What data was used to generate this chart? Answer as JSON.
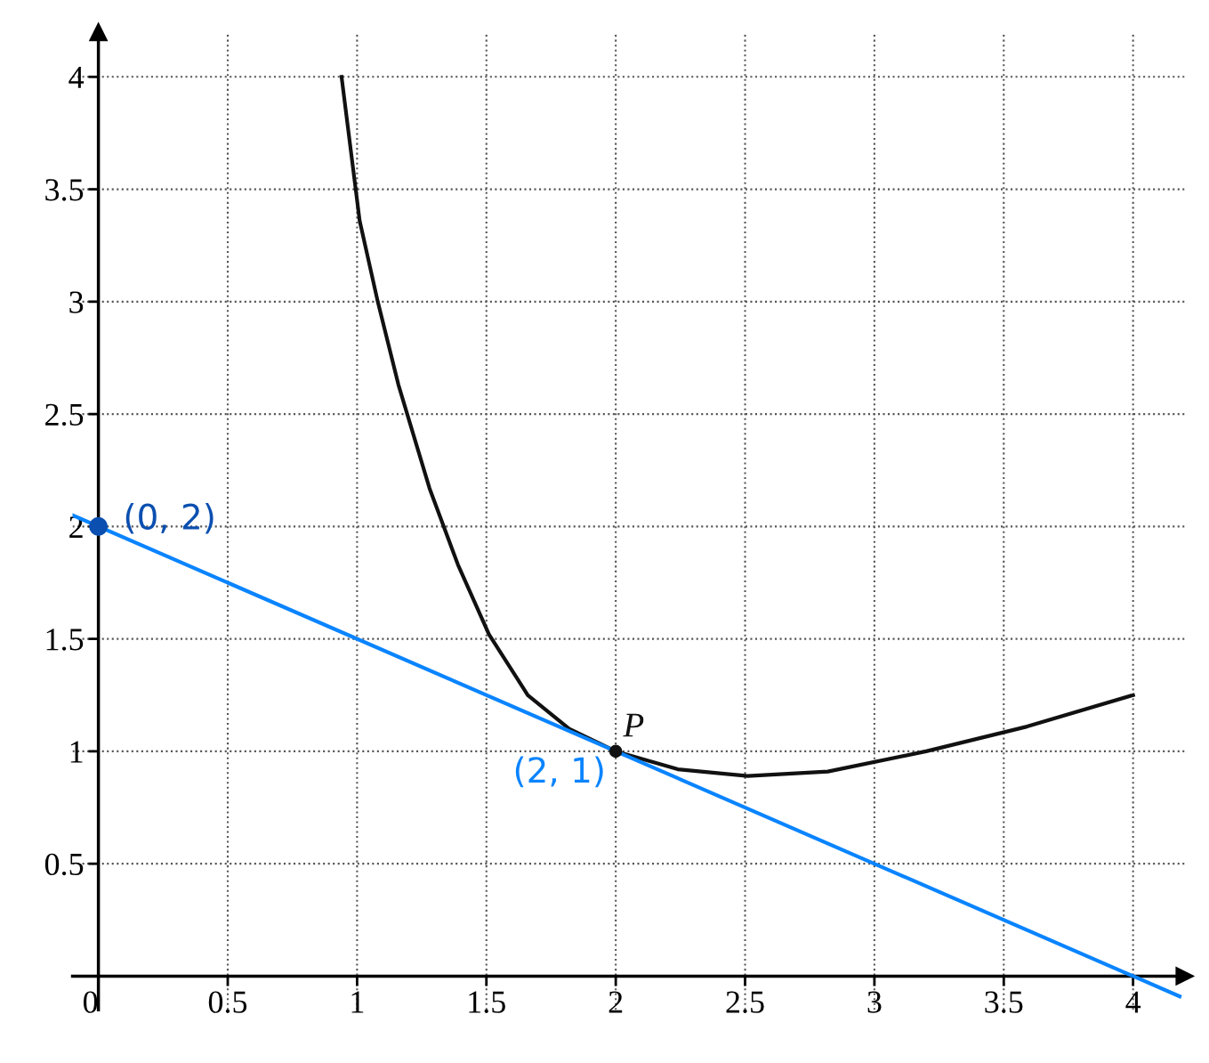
{
  "chart_data": {
    "type": "line",
    "xlim": [
      -0.1,
      4.2
    ],
    "ylim": [
      -0.15,
      4.2
    ],
    "xticks": [
      0,
      0.5,
      1,
      1.5,
      2,
      2.5,
      3,
      3.5,
      4
    ],
    "yticks": [
      0.5,
      1,
      1.5,
      2,
      2.5,
      3,
      3.5,
      4
    ],
    "grid": true,
    "legend": false,
    "line_style": "solid",
    "series": [
      {
        "color": "#111111",
        "x": [
          0.94,
          1.01,
          1.08,
          1.16,
          1.28,
          1.39,
          1.51,
          1.66,
          1.82,
          2,
          2.24,
          2.51,
          2.82,
          3.2,
          3.59,
          4
        ],
        "values": [
          4,
          3.36,
          3.0,
          2.63,
          2.17,
          1.83,
          1.52,
          1.25,
          1.1,
          1,
          0.92,
          0.89,
          0.91,
          1.0,
          1.11,
          1.25
        ]
      },
      {
        "color": "#0a84ff",
        "x": [
          -0.1,
          4.18
        ],
        "values": [
          2.05,
          -0.09
        ]
      },
      {
        "type": "scatter",
        "color": "#0b4fb0",
        "x": [
          0
        ],
        "values": [
          2
        ]
      },
      {
        "type": "scatter",
        "color": "#111111",
        "x": [
          2
        ],
        "values": [
          1
        ]
      }
    ],
    "annotations": [
      "(0, 2)",
      {
        "text": "(2, 1)",
        "x": 2,
        "y": 1
      },
      {
        "text": "P",
        "x": 2,
        "y": 1
      }
    ]
  }
}
